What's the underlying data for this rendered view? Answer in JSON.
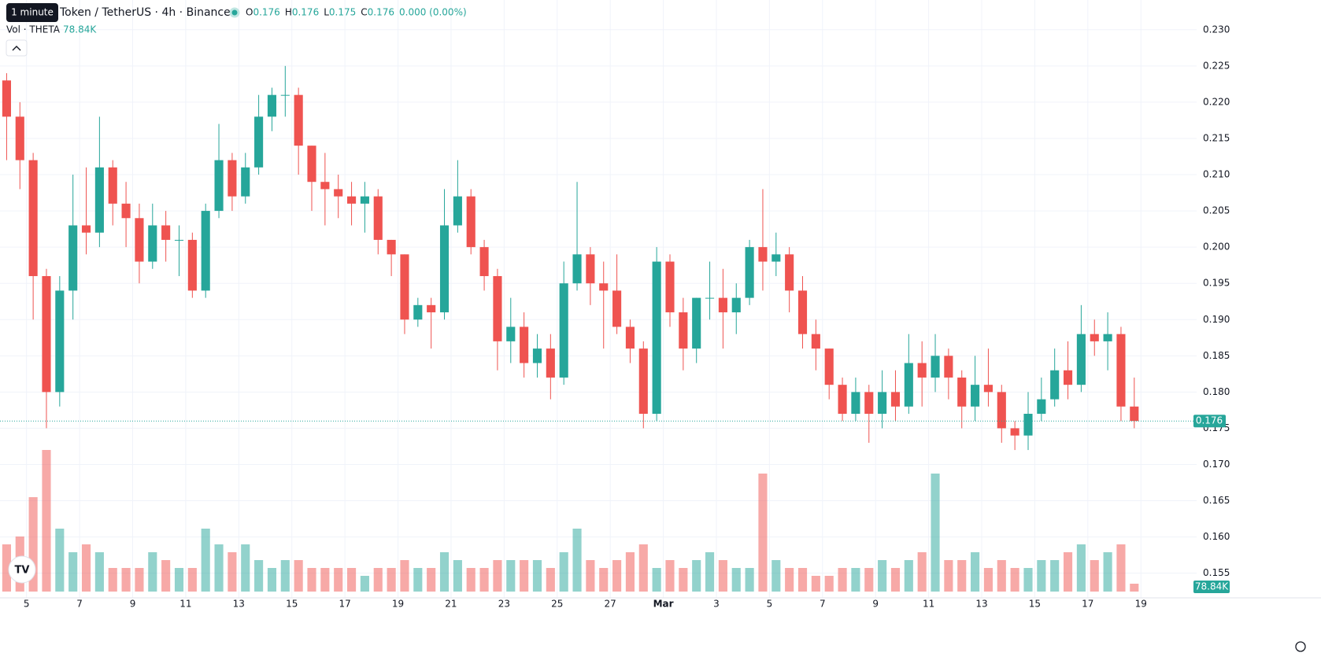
{
  "chart_data": {
    "type": "candlestick",
    "tooltip": "1 minute",
    "symbol": "Token / TetherUS · 4h · Binance",
    "ohlc_labels": [
      "O",
      "H",
      "L",
      "C"
    ],
    "ohlc_values": [
      0.176,
      0.176,
      0.175,
      0.176
    ],
    "change": "0.000 (0.00%)",
    "volume_title": "Vol · THETA",
    "volume_value": {
      "value": 78840,
      "label": "78.84K"
    },
    "last_price": 0.176,
    "up_color": "#26a69a",
    "down_color": "#ef5350",
    "grid": true,
    "ylim": [
      0.1516,
      0.2341
    ],
    "yticks": [
      {
        "value": 0.23,
        "label": "0.230"
      },
      0.225,
      {
        "value": 0.22,
        "label": "0.220"
      },
      0.215,
      {
        "value": 0.21,
        "label": "0.210"
      },
      0.205,
      {
        "value": 0.2,
        "label": "0.200"
      },
      0.195,
      {
        "value": 0.19,
        "label": "0.190"
      },
      0.185,
      {
        "value": 0.18,
        "label": "0.180"
      },
      0.175,
      {
        "value": 0.17,
        "label": "0.170"
      },
      0.165,
      {
        "value": 0.16,
        "label": "0.160"
      },
      0.155
    ],
    "xlim": [
      0,
      90.2
    ],
    "xticks": [
      {
        "value": 2,
        "label": "5"
      },
      {
        "value": 6,
        "label": "7"
      },
      {
        "value": 10,
        "label": "9"
      },
      {
        "value": 14,
        "label": "11"
      },
      {
        "value": 18,
        "label": "13"
      },
      {
        "value": 22,
        "label": "15"
      },
      {
        "value": 26,
        "label": "17"
      },
      {
        "value": 30,
        "label": "19"
      },
      {
        "value": 34,
        "label": "21"
      },
      {
        "value": 38,
        "label": "23"
      },
      {
        "value": 42,
        "label": "25"
      },
      {
        "value": 46,
        "label": "27"
      },
      {
        "value": 50,
        "label": "Mar"
      },
      {
        "value": 54,
        "label": "3"
      },
      {
        "value": 58,
        "label": "5"
      },
      {
        "value": 62,
        "label": "7"
      },
      {
        "value": 66,
        "label": "9"
      },
      {
        "value": 70,
        "label": "11"
      },
      {
        "value": 74,
        "label": "13"
      },
      {
        "value": 78,
        "label": "15"
      },
      {
        "value": 82,
        "label": "17"
      },
      {
        "value": 86,
        "label": "19"
      }
    ],
    "vlim": [
      0,
      20
    ],
    "candles": [
      [
        0.223,
        0.224,
        0.212,
        0.218
      ],
      [
        0.218,
        0.22,
        0.208,
        0.212
      ],
      [
        0.212,
        0.213,
        0.19,
        0.196
      ],
      [
        0.196,
        0.197,
        0.175,
        0.18
      ],
      [
        0.18,
        0.196,
        0.178,
        0.194
      ],
      [
        0.194,
        0.21,
        0.19,
        0.203
      ],
      [
        0.203,
        0.211,
        0.199,
        0.202
      ],
      [
        0.202,
        0.218,
        0.2,
        0.211
      ],
      [
        0.211,
        0.212,
        0.203,
        0.206
      ],
      [
        0.206,
        0.209,
        0.2,
        0.204
      ],
      [
        0.204,
        0.206,
        0.195,
        0.198
      ],
      [
        0.198,
        0.206,
        0.197,
        0.203
      ],
      [
        0.203,
        0.205,
        0.198,
        0.201
      ],
      [
        0.201,
        0.203,
        0.196,
        0.201
      ],
      [
        0.201,
        0.202,
        0.193,
        0.194
      ],
      [
        0.194,
        0.206,
        0.193,
        0.205
      ],
      [
        0.205,
        0.217,
        0.204,
        0.212
      ],
      [
        0.212,
        0.213,
        0.205,
        0.207
      ],
      [
        0.207,
        0.213,
        0.206,
        0.211
      ],
      [
        0.211,
        0.221,
        0.21,
        0.218
      ],
      [
        0.218,
        0.222,
        0.216,
        0.221
      ],
      [
        0.221,
        0.225,
        0.218,
        0.221
      ],
      [
        0.221,
        0.222,
        0.21,
        0.214
      ],
      [
        0.214,
        0.214,
        0.205,
        0.209
      ],
      [
        0.209,
        0.213,
        0.203,
        0.208
      ],
      [
        0.208,
        0.21,
        0.204,
        0.207
      ],
      [
        0.207,
        0.209,
        0.203,
        0.206
      ],
      [
        0.206,
        0.209,
        0.202,
        0.207
      ],
      [
        0.207,
        0.208,
        0.199,
        0.201
      ],
      [
        0.201,
        0.201,
        0.196,
        0.199
      ],
      [
        0.199,
        0.199,
        0.188,
        0.19
      ],
      [
        0.19,
        0.193,
        0.189,
        0.192
      ],
      [
        0.192,
        0.193,
        0.186,
        0.191
      ],
      [
        0.191,
        0.208,
        0.19,
        0.203
      ],
      [
        0.203,
        0.212,
        0.202,
        0.207
      ],
      [
        0.207,
        0.208,
        0.199,
        0.2
      ],
      [
        0.2,
        0.201,
        0.194,
        0.196
      ],
      [
        0.196,
        0.197,
        0.183,
        0.187
      ],
      [
        0.187,
        0.193,
        0.184,
        0.189
      ],
      [
        0.189,
        0.191,
        0.182,
        0.184
      ],
      [
        0.184,
        0.188,
        0.182,
        0.186
      ],
      [
        0.186,
        0.188,
        0.179,
        0.182
      ],
      [
        0.182,
        0.198,
        0.181,
        0.195
      ],
      [
        0.195,
        0.209,
        0.194,
        0.199
      ],
      [
        0.199,
        0.2,
        0.192,
        0.195
      ],
      [
        0.195,
        0.198,
        0.186,
        0.194
      ],
      [
        0.194,
        0.199,
        0.188,
        0.189
      ],
      [
        0.189,
        0.19,
        0.184,
        0.186
      ],
      [
        0.186,
        0.187,
        0.175,
        0.177
      ],
      [
        0.177,
        0.2,
        0.176,
        0.198
      ],
      [
        0.198,
        0.199,
        0.189,
        0.191
      ],
      [
        0.191,
        0.193,
        0.183,
        0.186
      ],
      [
        0.186,
        0.193,
        0.184,
        0.193
      ],
      [
        0.193,
        0.198,
        0.19,
        0.193
      ],
      [
        0.193,
        0.197,
        0.186,
        0.191
      ],
      [
        0.191,
        0.195,
        0.188,
        0.193
      ],
      [
        0.193,
        0.201,
        0.192,
        0.2
      ],
      [
        0.2,
        0.208,
        0.194,
        0.198
      ],
      [
        0.198,
        0.202,
        0.196,
        0.199
      ],
      [
        0.199,
        0.2,
        0.191,
        0.194
      ],
      [
        0.194,
        0.196,
        0.186,
        0.188
      ],
      [
        0.188,
        0.19,
        0.183,
        0.186
      ],
      [
        0.186,
        0.186,
        0.179,
        0.181
      ],
      [
        0.181,
        0.182,
        0.176,
        0.177
      ],
      [
        0.177,
        0.182,
        0.176,
        0.18
      ],
      [
        0.18,
        0.181,
        0.173,
        0.177
      ],
      [
        0.177,
        0.183,
        0.175,
        0.18
      ],
      [
        0.18,
        0.183,
        0.176,
        0.178
      ],
      [
        0.178,
        0.188,
        0.177,
        0.184
      ],
      [
        0.184,
        0.187,
        0.178,
        0.182
      ],
      [
        0.182,
        0.188,
        0.18,
        0.185
      ],
      [
        0.185,
        0.186,
        0.179,
        0.182
      ],
      [
        0.182,
        0.183,
        0.175,
        0.178
      ],
      [
        0.178,
        0.185,
        0.176,
        0.181
      ],
      [
        0.181,
        0.186,
        0.178,
        0.18
      ],
      [
        0.18,
        0.181,
        0.173,
        0.175
      ],
      [
        0.175,
        0.176,
        0.172,
        0.174
      ],
      [
        0.174,
        0.18,
        0.172,
        0.177
      ],
      [
        0.177,
        0.182,
        0.176,
        0.179
      ],
      [
        0.179,
        0.186,
        0.178,
        0.183
      ],
      [
        0.183,
        0.187,
        0.179,
        0.181
      ],
      [
        0.181,
        0.192,
        0.18,
        0.188
      ],
      [
        0.188,
        0.19,
        0.185,
        0.187
      ],
      [
        0.187,
        0.191,
        0.183,
        0.188
      ],
      [
        0.188,
        0.189,
        0.176,
        0.178
      ],
      [
        0.178,
        0.182,
        0.175,
        0.176
      ]
    ],
    "volumes": [
      6,
      7,
      12,
      18,
      8,
      5,
      6,
      5,
      3,
      3,
      3,
      5,
      4,
      3,
      3,
      8,
      6,
      5,
      6,
      4,
      3,
      4,
      4,
      3,
      3,
      3,
      3,
      2,
      3,
      3,
      4,
      3,
      3,
      5,
      4,
      3,
      3,
      4,
      4,
      4,
      4,
      3,
      5,
      8,
      4,
      3,
      4,
      5,
      6,
      3,
      4,
      3,
      4,
      5,
      4,
      3,
      3,
      15,
      4,
      3,
      3,
      2,
      2,
      3,
      3,
      3,
      4,
      3,
      4,
      5,
      15,
      4,
      4,
      5,
      3,
      4,
      3,
      3,
      4,
      4,
      5,
      6,
      4,
      5,
      6,
      1
    ]
  }
}
